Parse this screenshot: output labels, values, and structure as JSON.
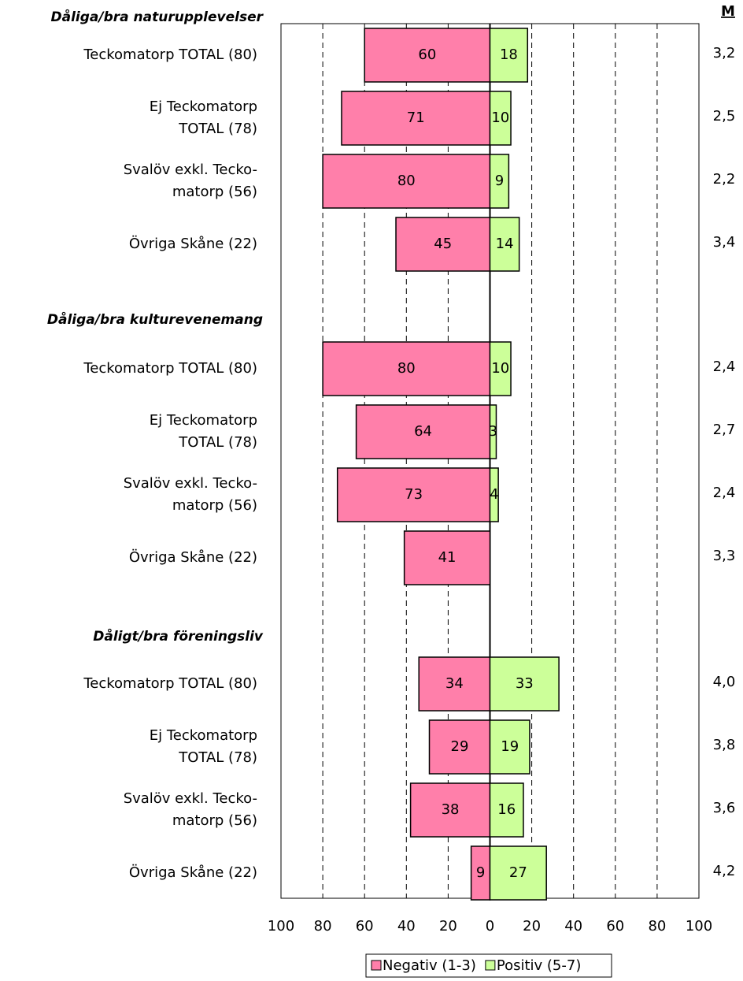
{
  "chart_data": {
    "type": "bar",
    "orientation": "horizontal",
    "group_titles": [
      "Dåliga/bra naturupplevelser",
      "Dåliga/bra kulturevenemang",
      "Dåligt/bra föreningsliv"
    ],
    "categories": [
      [
        "Teckomatorp TOTAL (80)",
        "Ej Teckomatorp\nTOTAL (78)",
        "Svalöv exkl. Tecko-\nmatorp (56)",
        "Övriga Skåne (22)"
      ],
      [
        "Teckomatorp TOTAL (80)",
        "Ej Teckomatorp\nTOTAL (78)",
        "Svalöv exkl. Tecko-\nmatorp (56)",
        "Övriga Skåne (22)"
      ],
      [
        "Teckomatorp TOTAL (80)",
        "Ej Teckomatorp\nTOTAL (78)",
        "Svalöv exkl. Tecko-\nmatorp (56)",
        "Övriga Skåne (22)"
      ]
    ],
    "series": [
      {
        "name": "Negativ (1-3)",
        "color": "#ff7faa",
        "values": [
          [
            -60,
            -71,
            -80,
            -45
          ],
          [
            -80,
            -64,
            -73,
            -41
          ],
          [
            -34,
            -29,
            -38,
            -9
          ]
        ],
        "value_labels": [
          [
            "60",
            "71",
            "80",
            "45"
          ],
          [
            "80",
            "64",
            "73",
            "41"
          ],
          [
            "34",
            "29",
            "38",
            "9"
          ]
        ]
      },
      {
        "name": "Positiv (5-7)",
        "color": "#ccff99",
        "values": [
          [
            18,
            10,
            9,
            14
          ],
          [
            10,
            3,
            4,
            0
          ],
          [
            33,
            19,
            16,
            27
          ]
        ],
        "value_labels": [
          [
            "18",
            "10",
            "9",
            "14"
          ],
          [
            "10",
            "3",
            "4",
            null
          ],
          [
            "33",
            "19",
            "16",
            "27"
          ]
        ]
      }
    ],
    "means": {
      "name": "M",
      "values": [
        [
          3.2,
          2.5,
          2.2,
          3.4
        ],
        [
          2.4,
          2.7,
          2.4,
          3.3
        ],
        [
          4.0,
          3.8,
          3.6,
          4.2
        ]
      ],
      "value_labels": [
        [
          "3,2",
          "2,5",
          "2,2",
          "3,4"
        ],
        [
          "2,4",
          "2,7",
          "2,4",
          "3,3"
        ],
        [
          "4,0",
          "3,8",
          "3,6",
          "4,2"
        ]
      ]
    },
    "xlim": [
      -100,
      100
    ],
    "xticks": [
      {
        "value": -100,
        "label": "100"
      },
      {
        "value": -80,
        "label": "80"
      },
      {
        "value": -60,
        "label": "60"
      },
      {
        "value": -40,
        "label": "40"
      },
      {
        "value": -20,
        "label": "20"
      },
      0,
      20,
      40,
      60,
      80,
      100
    ],
    "grid": true,
    "legend": "bottom"
  }
}
